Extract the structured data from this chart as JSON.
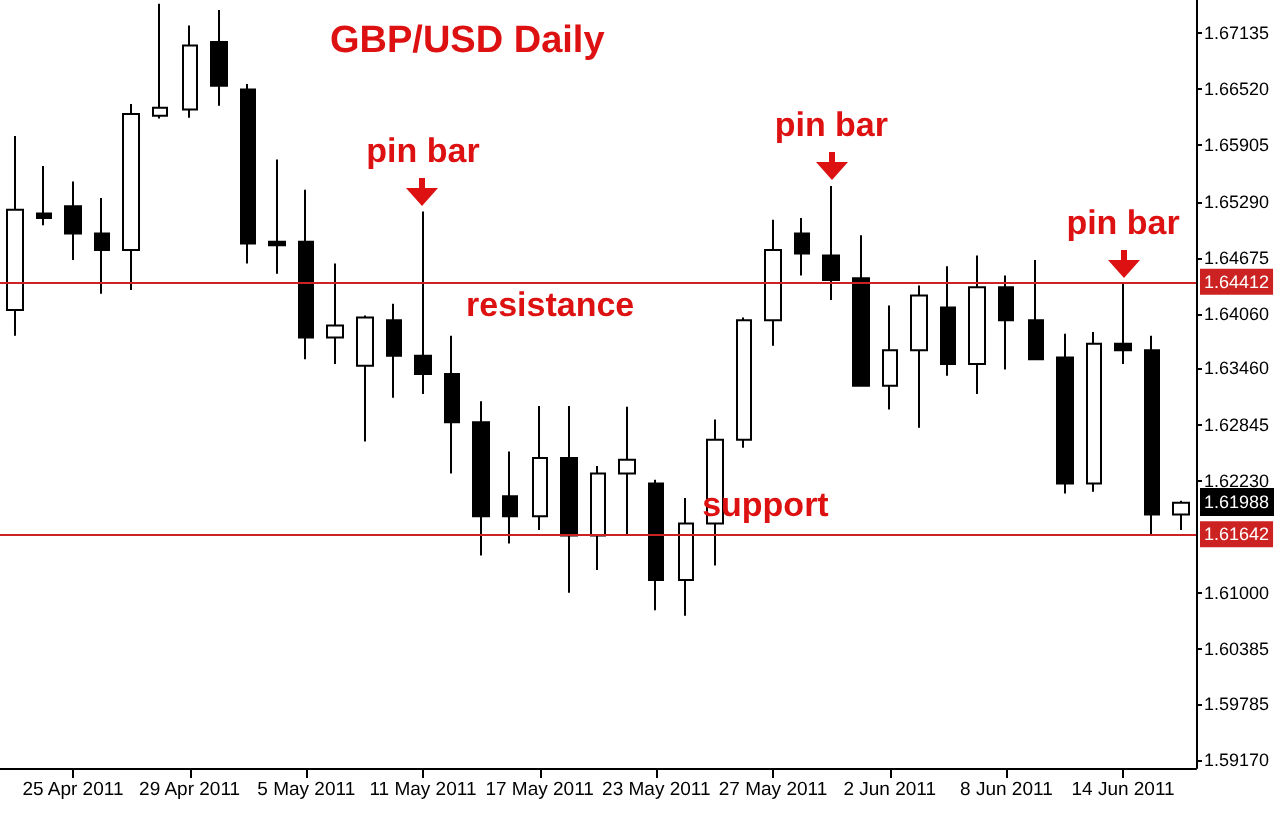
{
  "chart_data": {
    "type": "candlestick",
    "title": "GBP/USD Daily",
    "categories": [
      null,
      null,
      "25 Apr 2011",
      null,
      null,
      null,
      "29 Apr 2011",
      null,
      null,
      null,
      "5 May 2011",
      null,
      null,
      null,
      "11 May 2011",
      null,
      null,
      null,
      "17 May 2011",
      null,
      null,
      null,
      "23 May 2011",
      null,
      null,
      null,
      "27 May 2011",
      null,
      null,
      null,
      "2 Jun 2011",
      null,
      null,
      null,
      "8 Jun 2011",
      null,
      null,
      null,
      "14 Jun 2011",
      null,
      null
    ],
    "ohlc": [
      [
        1.641,
        1.6601,
        1.6382,
        1.652
      ],
      [
        1.6516,
        1.6568,
        1.6503,
        1.6511
      ],
      [
        1.6524,
        1.6551,
        1.6465,
        1.6494
      ],
      [
        1.6494,
        1.6533,
        1.6428,
        1.6476
      ],
      [
        1.6476,
        1.6636,
        1.6432,
        1.6625
      ],
      [
        1.6623,
        1.6746,
        1.662,
        1.6632
      ],
      [
        1.663,
        1.6722,
        1.6621,
        1.67
      ],
      [
        1.6704,
        1.6739,
        1.6634,
        1.6656
      ],
      [
        1.6652,
        1.6658,
        1.6461,
        1.6483
      ],
      [
        1.6485,
        1.6575,
        1.645,
        1.6481
      ],
      [
        1.6485,
        1.6542,
        1.6356,
        1.638
      ],
      [
        1.638,
        1.6461,
        1.6351,
        1.6393
      ],
      [
        1.6349,
        1.6404,
        1.6266,
        1.6402
      ],
      [
        1.6399,
        1.6417,
        1.6314,
        1.636
      ],
      [
        1.636,
        1.6518,
        1.6318,
        1.634
      ],
      [
        1.634,
        1.6382,
        1.6231,
        1.6287
      ],
      [
        1.6287,
        1.631,
        1.6141,
        1.6184
      ],
      [
        1.6206,
        1.6255,
        1.6154,
        1.6184
      ],
      [
        1.6184,
        1.6305,
        1.6169,
        1.6248
      ],
      [
        1.6248,
        1.6305,
        1.61,
        1.6163
      ],
      [
        1.6163,
        1.6239,
        1.6125,
        1.6231
      ],
      [
        1.6231,
        1.6304,
        1.6163,
        1.6246
      ],
      [
        1.622,
        1.6224,
        1.6081,
        1.6114
      ],
      [
        1.6114,
        1.6204,
        1.6075,
        1.6176
      ],
      [
        1.6176,
        1.629,
        1.613,
        1.6268
      ],
      [
        1.6268,
        1.6402,
        1.6259,
        1.6399
      ],
      [
        1.6399,
        1.6509,
        1.6371,
        1.6476
      ],
      [
        1.6494,
        1.6511,
        1.6448,
        1.6472
      ],
      [
        1.647,
        1.6546,
        1.6421,
        1.6443
      ],
      [
        1.6445,
        1.6492,
        1.6327,
        1.6327
      ],
      [
        1.6327,
        1.6415,
        1.6301,
        1.6366
      ],
      [
        1.6366,
        1.6437,
        1.6281,
        1.6426
      ],
      [
        1.6413,
        1.6458,
        1.6338,
        1.6351
      ],
      [
        1.6351,
        1.647,
        1.6318,
        1.6435
      ],
      [
        1.6435,
        1.6448,
        1.6345,
        1.6399
      ],
      [
        1.6399,
        1.6465,
        1.6356,
        1.6356
      ],
      [
        1.6358,
        1.6384,
        1.6209,
        1.622
      ],
      [
        1.622,
        1.6386,
        1.6211,
        1.6373
      ],
      [
        1.6373,
        1.6439,
        1.6351,
        1.6366
      ],
      [
        1.6366,
        1.6382,
        1.6164,
        1.6186
      ],
      [
        1.6186,
        1.6201,
        1.6169,
        1.61988
      ]
    ],
    "ylim": [
      1.5908,
      1.675
    ],
    "yticks": [
      1.67135,
      {
        "value": 1.6652,
        "label": "1.66520"
      },
      1.65905,
      {
        "value": 1.6529,
        "label": "1.65290"
      },
      1.64675,
      {
        "value": 1.6406,
        "label": "1.64060"
      },
      {
        "value": 1.6346,
        "label": "1.63460"
      },
      1.62845,
      {
        "value": 1.6223,
        "label": "1.62230"
      },
      {
        "value": 1.61,
        "label": "1.61000"
      },
      1.60385,
      1.59785,
      {
        "value": 1.5917,
        "label": "1.59170"
      }
    ],
    "ref_lines": [
      {
        "axis": "y",
        "value": 1.64412,
        "label": "1.64412",
        "color": "#cc2222"
      },
      {
        "axis": "y",
        "value": 1.61642,
        "label": "1.61642",
        "color": "#cc2222"
      }
    ],
    "annotations": [
      "resistance",
      "support",
      {
        "text": "pin bar",
        "y": 1.6518
      },
      {
        "text": "pin bar",
        "y": 1.6546
      },
      {
        "text": "pin bar",
        "y": 1.6439
      },
      "1.61988"
    ]
  }
}
